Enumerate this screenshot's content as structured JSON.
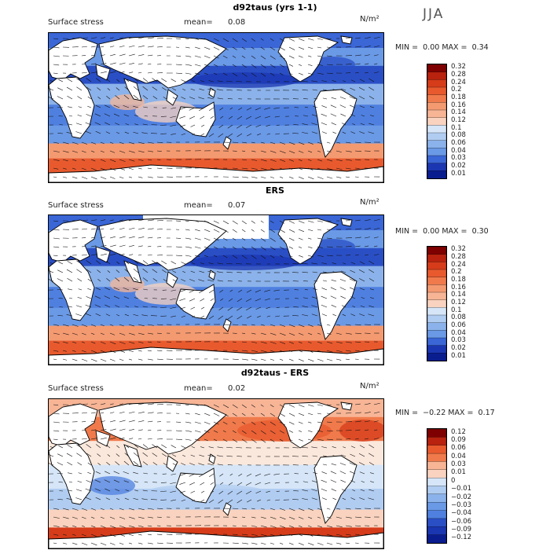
{
  "season": "JJA",
  "units": "N/m²",
  "colors": {
    "pos": [
      "#7f0000",
      "#b8220e",
      "#d63c1a",
      "#e85a2e",
      "#f07a4b",
      "#f49a71",
      "#f7b596",
      "#f9d3bf",
      "#fbe8dc"
    ],
    "neg": [
      "#d6e6f8",
      "#b0ccf1",
      "#8bb2ea",
      "#6a99e6",
      "#4f80e0",
      "#3a66d6",
      "#2a4fc5",
      "#1b36b1",
      "#0a1d8f"
    ],
    "land": "#ffffff",
    "coast": "#000000"
  },
  "panels": [
    {
      "title": "d92taus (yrs 1-1)",
      "variable": "Surface stress",
      "mean_label": "mean=",
      "mean": "0.08",
      "min_label": "MIN =",
      "min": "0.00",
      "max_label": "MAX =",
      "max": "0.34",
      "colorbar": [
        "0.32",
        "0.28",
        "0.24",
        "0.2",
        "0.18",
        "0.16",
        "0.14",
        "0.12",
        "0.1",
        "0.08",
        "0.06",
        "0.04",
        "0.03",
        "0.02",
        "0.01"
      ],
      "field": "magnitude",
      "masked_land": false
    },
    {
      "title": "ERS",
      "variable": "Surface stress",
      "mean_label": "mean=",
      "mean": "0.07",
      "min_label": "MIN =",
      "min": "0.00",
      "max_label": "MAX =",
      "max": "0.30",
      "colorbar": [
        "0.32",
        "0.28",
        "0.24",
        "0.2",
        "0.18",
        "0.16",
        "0.14",
        "0.12",
        "0.1",
        "0.08",
        "0.06",
        "0.04",
        "0.03",
        "0.02",
        "0.01"
      ],
      "field": "magnitude",
      "masked_land": true
    },
    {
      "title": "d92taus - ERS",
      "variable": "Surface stress",
      "mean_label": "mean=",
      "mean": "0.02",
      "min_label": "MIN =",
      "min": "−0.22",
      "max_label": "MAX =",
      "max": "0.17",
      "colorbar": [
        "0.12",
        "0.09",
        "0.06",
        "0.04",
        "0.03",
        "0.01",
        "0",
        "−0.01",
        "−0.02",
        "−0.03",
        "−0.04",
        "−0.06",
        "−0.09",
        "−0.12"
      ],
      "field": "difference",
      "masked_land": false
    }
  ]
}
